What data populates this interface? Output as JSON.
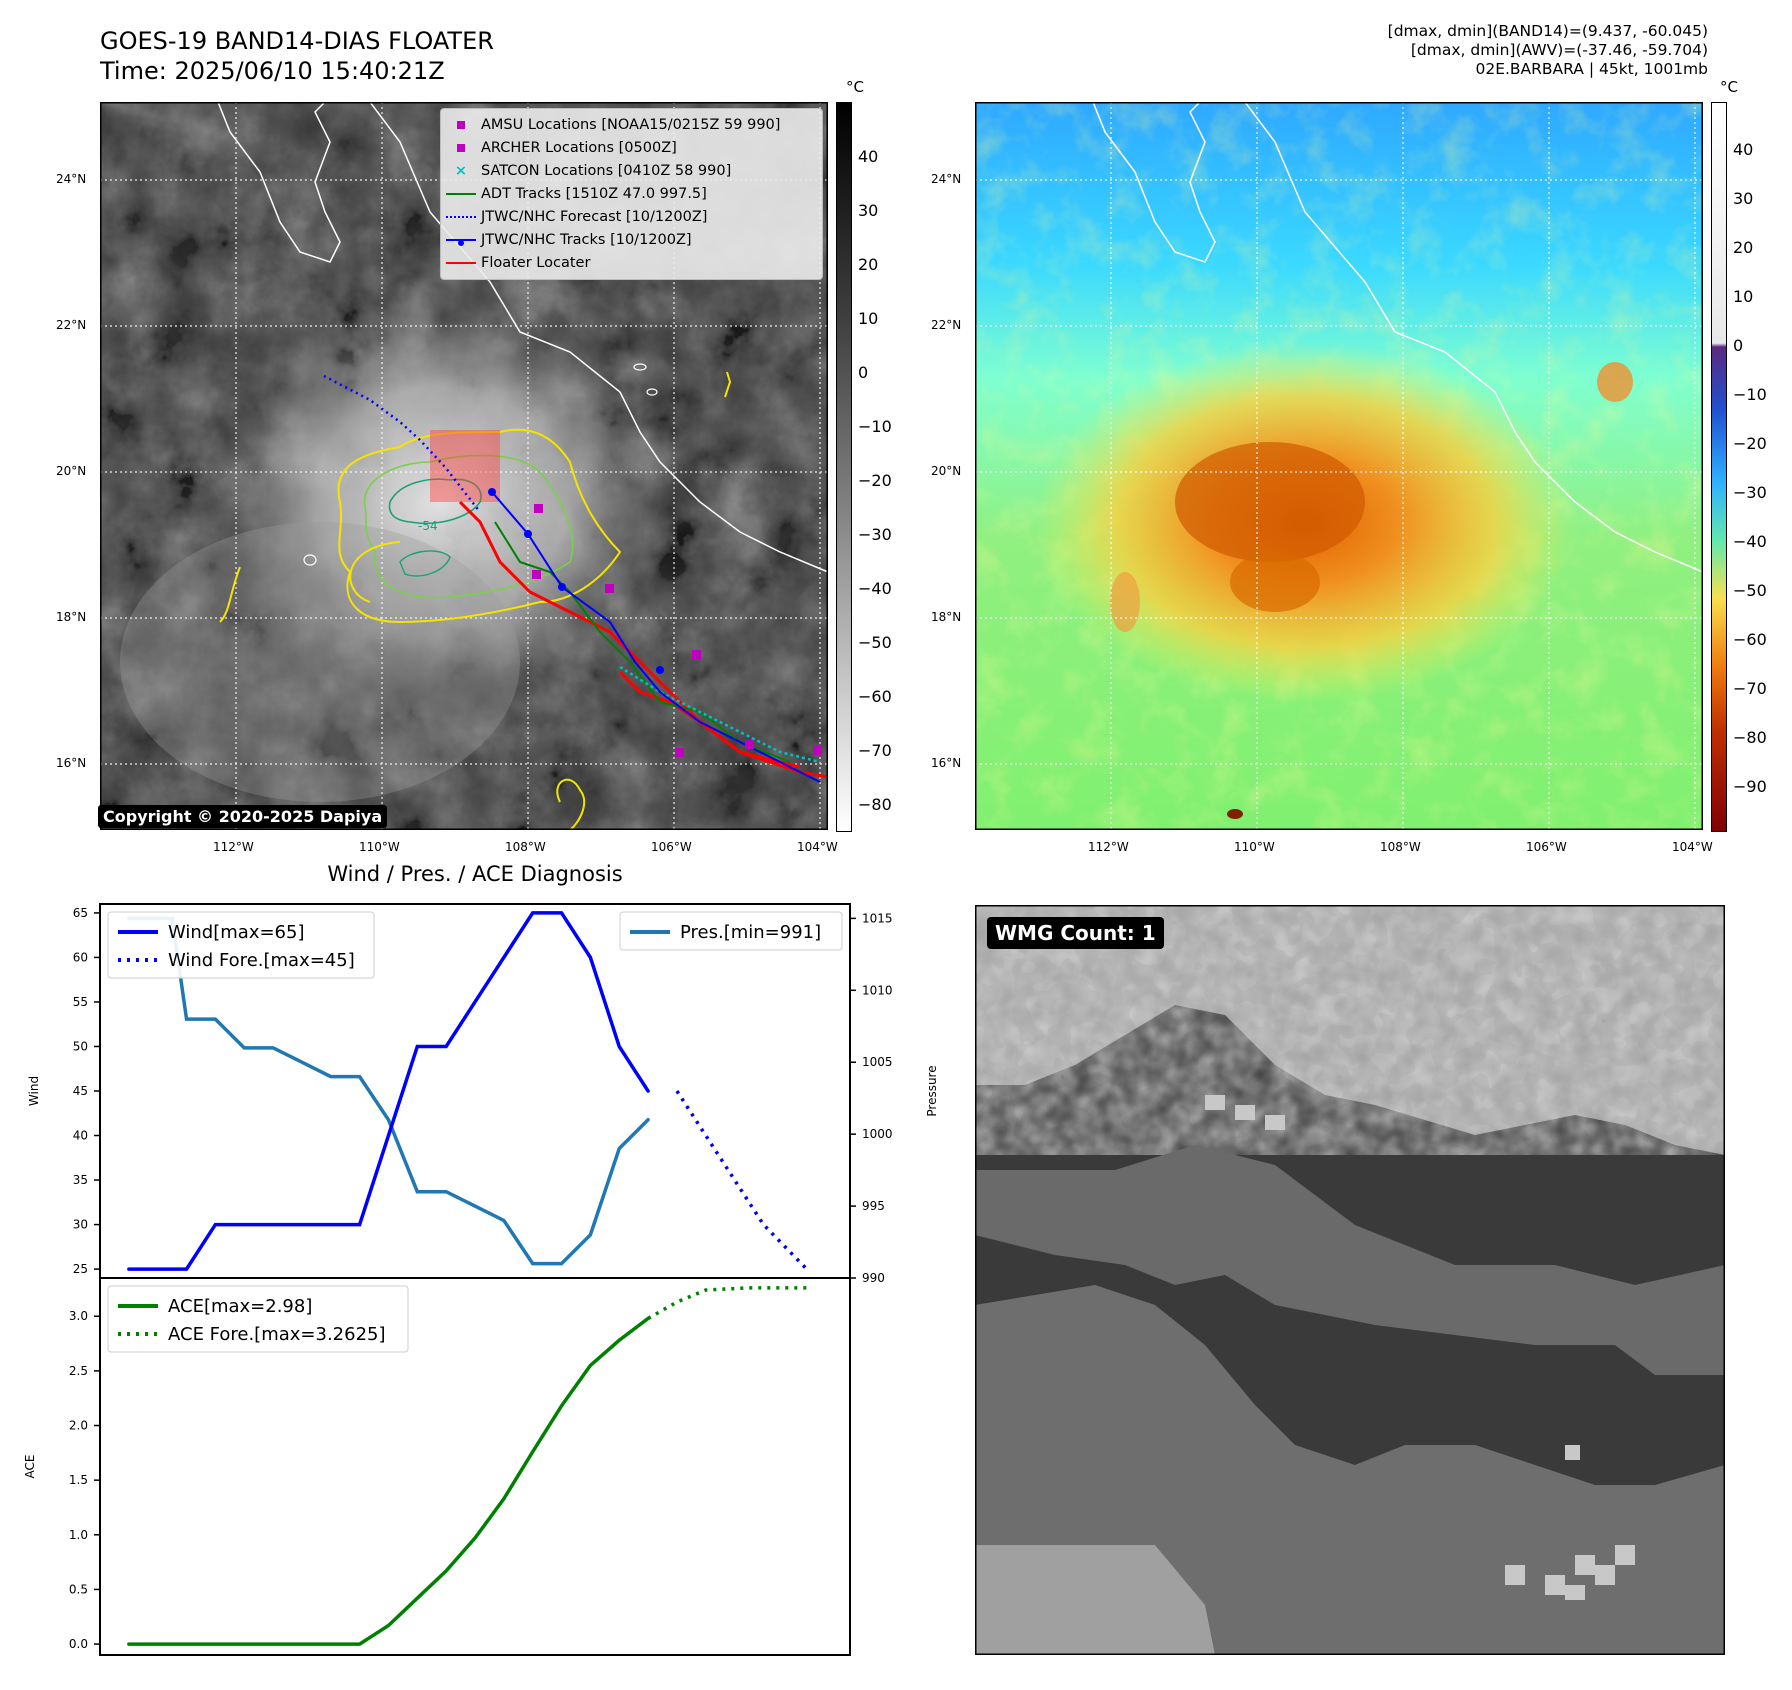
{
  "header": {
    "title_line1": "GOES-19 BAND14-DIAS FLOATER",
    "title_line2": "Time: 2025/06/10 15:40:21Z",
    "info_line1": "[dmax, dmin](BAND14)=(9.437, -60.045)",
    "info_line2": "[dmax, dmin](AWV)=(-37.46, -59.704)",
    "info_line3": "02E.BARBARA | 45kt, 1001mb"
  },
  "map_axes": {
    "lon_labels": [
      "112°W",
      "110°W",
      "108°W",
      "106°W",
      "104°W"
    ],
    "lat_labels": [
      "24°N",
      "22°N",
      "20°N",
      "18°N",
      "16°N"
    ]
  },
  "ir_panel": {
    "copyright": "Copyright © 2020-2025 Dapiya",
    "colorbar_unit": "°C",
    "colorbar_ticks": [
      "40",
      "30",
      "20",
      "10",
      "0",
      "−10",
      "−20",
      "−30",
      "−40",
      "−50",
      "−60",
      "−70",
      "−80"
    ],
    "legend": [
      {
        "label": "AMSU Locations [NOAA15/0215Z 59 990]",
        "color": "#c000c0",
        "marker": "square"
      },
      {
        "label": "ARCHER Locations [0500Z]",
        "color": "#c000c0",
        "marker": "square"
      },
      {
        "label": "SATCON Locations [0410Z 58 990]",
        "color": "#00c0c0",
        "marker": "x"
      },
      {
        "label": "ADT Tracks [1510Z 47.0 997.5]",
        "color": "#008000",
        "marker": "line"
      },
      {
        "label": "JTWC/NHC Forecast [10/1200Z]",
        "color": "#0000ff",
        "marker": "dotted"
      },
      {
        "label": "JTWC/NHC Tracks [10/1200Z]",
        "color": "#0000ff",
        "marker": "line-dot"
      },
      {
        "label": "Floater Locater",
        "color": "#ff0000",
        "marker": "line"
      }
    ],
    "contour_label": "-54"
  },
  "awv_panel": {
    "colorbar_unit": "°C",
    "colorbar_ticks": [
      "40",
      "30",
      "20",
      "10",
      "0",
      "−10",
      "−20",
      "−30",
      "−40",
      "−50",
      "−60",
      "−70",
      "−80",
      "−90"
    ]
  },
  "wmg_panel": {
    "badge": "WMG Count: 1"
  },
  "colors": {
    "wind": "#0000ff",
    "pressure": "#1f77b4",
    "ace": "#008000"
  },
  "chart_data": [
    {
      "type": "line",
      "title": "Wind / Pres. / ACE Diagnosis",
      "ylabel": "Wind",
      "y2label": "Pressure",
      "ylim": [
        24,
        66
      ],
      "y2lim": [
        990,
        1016
      ],
      "yticks": [
        "25",
        "30",
        "35",
        "40",
        "45",
        "50",
        "55",
        "60",
        "65"
      ],
      "y2ticks": [
        "990",
        "995",
        "1000",
        "1005",
        "1010",
        "1015"
      ],
      "series": [
        {
          "name": "Wind[max=65]",
          "axis": "left",
          "style": "solid",
          "x": [
            0,
            1,
            2,
            3,
            4,
            5,
            6,
            7,
            8,
            9,
            10,
            11,
            12,
            13,
            14,
            15,
            16,
            17,
            18,
            19
          ],
          "values": [
            25,
            25,
            25,
            30,
            30,
            30,
            30,
            30,
            30,
            40,
            50,
            50,
            55,
            60,
            65,
            65,
            60,
            50,
            45,
            null
          ]
        },
        {
          "name": "Wind Fore.[max=45]",
          "axis": "left",
          "style": "dotted",
          "x": [
            19,
            20,
            22,
            23.5
          ],
          "values": [
            45,
            40,
            30,
            25
          ]
        },
        {
          "name": "Pres.[min=991]",
          "axis": "right",
          "style": "solid",
          "x": [
            0,
            1.5,
            2,
            3,
            4,
            5,
            6,
            7,
            8,
            9,
            10,
            11,
            12,
            13,
            14,
            15,
            16,
            17,
            18,
            19
          ],
          "values": [
            1015,
            1015,
            1008,
            1008,
            1006,
            1006,
            1005,
            1004,
            1004,
            1001,
            996,
            996,
            995,
            994,
            991,
            991,
            993,
            999,
            1001,
            null
          ]
        }
      ]
    },
    {
      "type": "line",
      "ylabel": "ACE",
      "ylim": [
        -0.1,
        3.35
      ],
      "yticks": [
        "0.0",
        "0.5",
        "1.0",
        "1.5",
        "2.0",
        "2.5",
        "3.0"
      ],
      "series": [
        {
          "name": "ACE[max=2.98]",
          "style": "solid",
          "x": [
            0,
            1,
            2,
            3,
            4,
            5,
            6,
            7,
            8,
            9,
            10,
            11,
            12,
            13,
            14,
            15,
            16,
            17,
            18,
            19
          ],
          "values": [
            0,
            0,
            0,
            0,
            0,
            0,
            0,
            0,
            0,
            0.17,
            0.42,
            0.67,
            0.97,
            1.33,
            1.76,
            2.18,
            2.55,
            2.78,
            2.98,
            null
          ]
        },
        {
          "name": "ACE Fore.[max=3.2625]",
          "style": "dotted",
          "x": [
            18,
            19,
            20,
            21.5,
            23.5
          ],
          "values": [
            2.98,
            3.13,
            3.24,
            3.26,
            3.26
          ]
        }
      ]
    }
  ]
}
